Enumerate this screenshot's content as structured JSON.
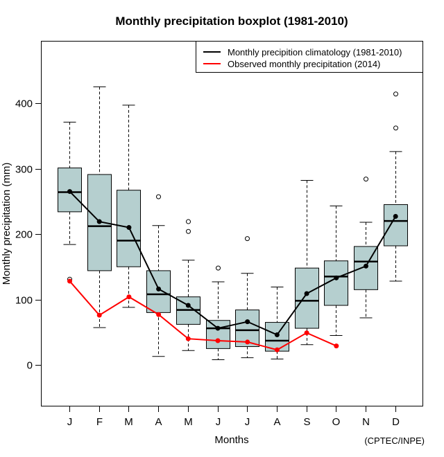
{
  "chart_data": {
    "type": "boxplot",
    "title": "Monthly precipitation boxplot (1981-2010)",
    "xlabel": "Months",
    "ylabel": "Monthly precipitation (mm)",
    "credit": "(CPTEC/INPE)",
    "ylim": [
      -60,
      490
    ],
    "yticks": [
      0,
      100,
      200,
      300,
      400
    ],
    "ytick_labels": [
      "0",
      "100",
      "200",
      "300",
      "400"
    ],
    "categories": [
      "J",
      "F",
      "M",
      "A",
      "M",
      "J",
      "J",
      "A",
      "S",
      "O",
      "N",
      "D"
    ],
    "grid": false,
    "legend_position": "top-right",
    "box_fill": "#b5cfcf",
    "boxes": [
      {
        "whisker_low": 184,
        "q1": 234,
        "median": 264,
        "q3": 301,
        "whisker_high": 371,
        "outliers": [
          131
        ]
      },
      {
        "whisker_low": 57,
        "q1": 144,
        "median": 212,
        "q3": 291,
        "whisker_high": 425,
        "outliers": []
      },
      {
        "whisker_low": 88,
        "q1": 150,
        "median": 190,
        "q3": 267,
        "whisker_high": 397,
        "outliers": []
      },
      {
        "whisker_low": 13,
        "q1": 80,
        "median": 108,
        "q3": 144,
        "whisker_high": 213,
        "outliers": [
          257
        ]
      },
      {
        "whisker_low": 22,
        "q1": 62,
        "median": 84,
        "q3": 104,
        "whisker_high": 160,
        "outliers": [
          204,
          219
        ]
      },
      {
        "whisker_low": 8,
        "q1": 25,
        "median": 56,
        "q3": 68,
        "whisker_high": 127,
        "outliers": [
          148
        ]
      },
      {
        "whisker_low": 11,
        "q1": 28,
        "median": 53,
        "q3": 84,
        "whisker_high": 140,
        "outliers": [
          193
        ]
      },
      {
        "whisker_low": 9,
        "q1": 21,
        "median": 37,
        "q3": 65,
        "whisker_high": 119,
        "outliers": []
      },
      {
        "whisker_low": 31,
        "q1": 56,
        "median": 98,
        "q3": 148,
        "whisker_high": 282,
        "outliers": []
      },
      {
        "whisker_low": 45,
        "q1": 91,
        "median": 135,
        "q3": 159,
        "whisker_high": 243,
        "outliers": []
      },
      {
        "whisker_low": 72,
        "q1": 115,
        "median": 158,
        "q3": 181,
        "whisker_high": 218,
        "outliers": [
          284
        ]
      },
      {
        "whisker_low": 128,
        "q1": 182,
        "median": 220,
        "q3": 245,
        "whisker_high": 326,
        "outliers": [
          362,
          414
        ]
      }
    ],
    "series": [
      {
        "name": "Monthly precipition climatology (1981-2010)",
        "color": "#000000",
        "values": [
          265,
          219,
          210,
          116,
          91,
          56,
          66,
          46,
          109,
          133,
          151,
          227
        ]
      },
      {
        "name": "Observed monthly precipitation (2014)",
        "color": "#ff0000",
        "values": [
          128,
          76,
          104,
          77,
          40,
          37,
          35,
          23,
          49,
          29,
          null,
          null
        ]
      }
    ]
  }
}
